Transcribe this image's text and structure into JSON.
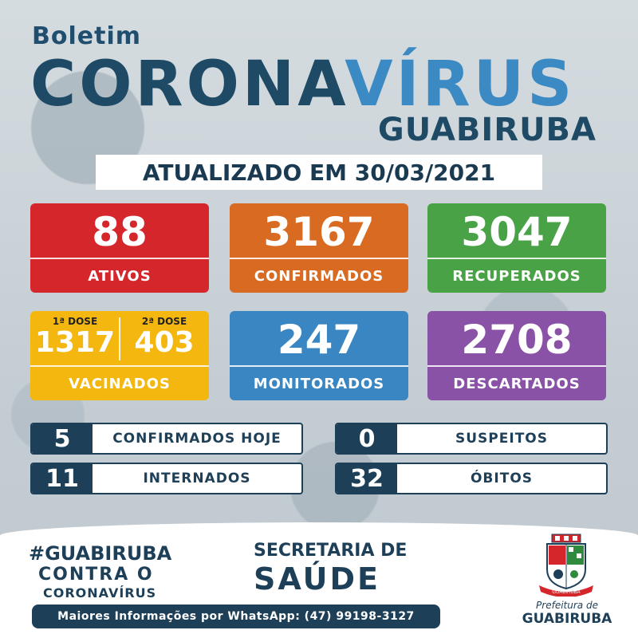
{
  "header": {
    "boletim": "Boletim",
    "title_part1": "CORONA",
    "title_part2": "VÍRUS",
    "city": "GUABIRUBA",
    "updated": "ATUALIZADO EM 30/03/2021"
  },
  "cards": {
    "ativos": {
      "value": "88",
      "label": "ATIVOS",
      "color": "#d5262c"
    },
    "confirmados": {
      "value": "3167",
      "label": "CONFIRMADOS",
      "color": "#d86a22"
    },
    "recuperados": {
      "value": "3047",
      "label": "RECUPERADOS",
      "color": "#4aa246"
    },
    "vacinados": {
      "dose1_label": "1ª DOSE",
      "dose1_value": "1317",
      "dose2_label": "2ª DOSE",
      "dose2_value": "403",
      "label": "VACINADOS",
      "color": "#f3b70f"
    },
    "monitorados": {
      "value": "247",
      "label": "MONITORADOS",
      "color": "#3a86c2"
    },
    "descartados": {
      "value": "2708",
      "label": "DESCARTADOS",
      "color": "#8a52a6"
    }
  },
  "stats": {
    "confirmados_hoje": {
      "value": "5",
      "label": "CONFIRMADOS HOJE"
    },
    "suspeitos": {
      "value": "0",
      "label": "SUSPEITOS"
    },
    "internados": {
      "value": "11",
      "label": "INTERNADOS"
    },
    "obitos": {
      "value": "32",
      "label": "ÓBITOS"
    }
  },
  "footer": {
    "hashtag": "#GUABIRUBA",
    "contra": "CONTRA O",
    "coronavirus": "CORONAVÍRUS",
    "secretaria": "SECRETARIA DE",
    "saude": "SAÚDE",
    "whatsapp": "Maiores Informações por WhatsApp: (47) 99198-3127",
    "prefeitura": "Prefeitura de",
    "prefeitura_city": "GUABIRUBA",
    "crest_banner": "GUABIRUBA"
  },
  "icons": [
    "crest-icon"
  ]
}
